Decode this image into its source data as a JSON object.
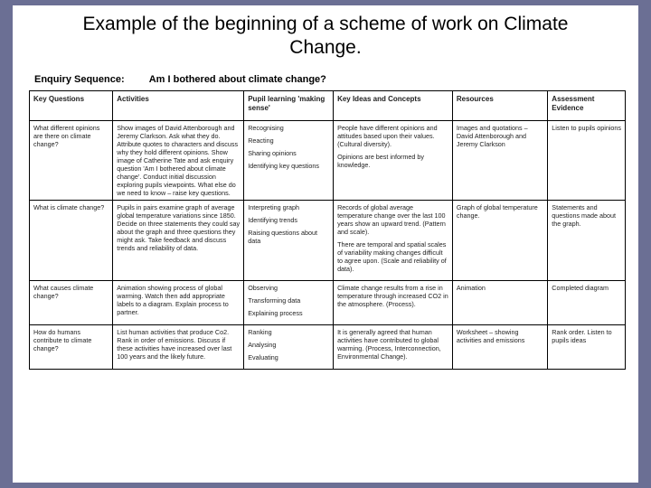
{
  "background_color": "#6b6f94",
  "slide_background": "#ffffff",
  "title": "Example of the beginning of a scheme of work on Climate Change.",
  "heading": {
    "label": "Enquiry Sequence:",
    "value": "Am I bothered about climate change?"
  },
  "table": {
    "border_color": "#000000",
    "header_fontsize": 8,
    "cell_fontsize": 7.2,
    "columns": [
      {
        "key": "q",
        "label": "Key Questions",
        "width": "14%"
      },
      {
        "key": "act",
        "label": "Activities",
        "width": "22%"
      },
      {
        "key": "pupil",
        "label": "Pupil learning 'making sense'",
        "width": "15%"
      },
      {
        "key": "ideas",
        "label": "Key Ideas and Concepts",
        "width": "20%"
      },
      {
        "key": "res",
        "label": "Resources",
        "width": "16%"
      },
      {
        "key": "assess",
        "label": "Assessment Evidence",
        "width": "13%"
      }
    ],
    "rows": [
      {
        "q": "What different opinions are there on climate change?",
        "act": "Show images of David Attenborough and Jeremy Clarkson. Ask what they do. Attribute quotes to characters and discuss why they hold different opinions. Show image of Catherine Tate and ask enquiry question 'Am I bothered about climate change'. Conduct initial discussion exploring pupils viewpoints. What else do we need to know – raise key questions.",
        "pupil": [
          "Recognising",
          "Reacting",
          "Sharing opinions",
          "Identifying key questions"
        ],
        "ideas": [
          "People have different opinions and attitudes based upon their values. (Cultural diversity).",
          "Opinions are best informed by knowledge."
        ],
        "res": "Images and quotations – David Attenborough and Jeremy Clarkson",
        "assess": "Listen to pupils opinions"
      },
      {
        "q": "What is climate change?",
        "act": "Pupils in pairs examine graph of average global temperature variations since 1850. Decide on three statements they could say about the graph and three questions they might ask. Take feedback and discuss trends and reliability of data.",
        "pupil": [
          "Interpreting graph",
          "Identifying trends",
          "Raising questions about data"
        ],
        "ideas": [
          "Records of global average temperature change over the last 100 years show an upward trend. (Pattern and scale).",
          "There are temporal and spatial scales of variability making changes difficult to agree upon. (Scale and reliability of data)."
        ],
        "res": "Graph of global temperature change.",
        "assess": "Statements and questions made about the graph."
      },
      {
        "q": "What causes climate change?",
        "act": "Animation showing process of global warming. Watch then add appropriate labels to a diagram. Explain process to partner.",
        "pupil": [
          "Observing",
          "Transforming data",
          "Explaining process"
        ],
        "ideas": [
          "Climate change results from a rise in temperature through increased CO2 in the atmosphere. (Process)."
        ],
        "res": "Animation",
        "assess": "Completed diagram"
      },
      {
        "q": "How do humans contribute to climate change?",
        "act": "List human activities that produce Co2. Rank in order of emissions. Discuss if these activities have increased over last 100 years and the likely future.",
        "pupil": [
          "Ranking",
          "Analysing",
          "Evaluating"
        ],
        "ideas": [
          "It is generally agreed that human activities have contributed to global warming. (Process, Interconnection, Environmental Change)."
        ],
        "res": "Worksheet – showing activities and emissions",
        "assess": "Rank order. Listen to pupils ideas"
      }
    ]
  }
}
